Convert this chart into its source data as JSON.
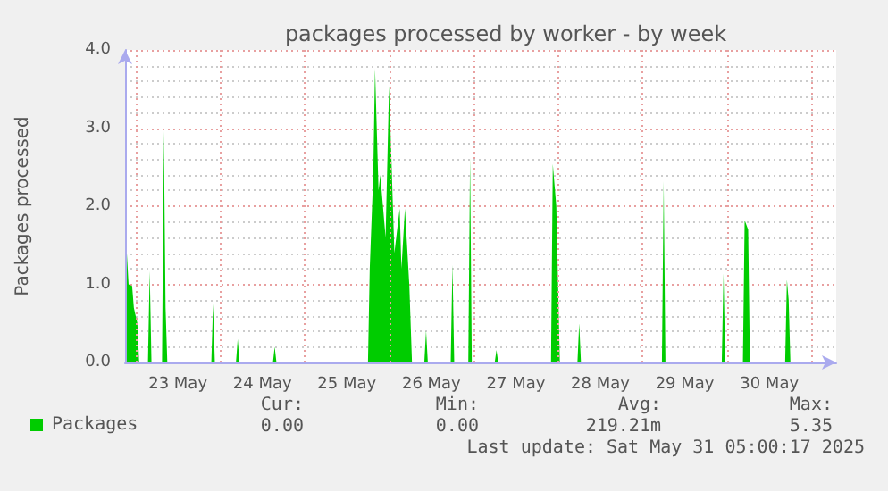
{
  "chart_data": {
    "type": "area",
    "title": "packages processed by worker - by week",
    "ylabel": "Packages processed",
    "series": [
      {
        "name": "Packages",
        "color": "#00cc00",
        "x": [
          "2025-05-22T21:30",
          "2025-05-22T22:00",
          "2025-05-22T23:00",
          "2025-05-22T23:30",
          "2025-05-23T00:30",
          "2025-05-23T01:00",
          "2025-05-23T03:30",
          "2025-05-23T04:00",
          "2025-05-23T04:30",
          "2025-05-23T07:30",
          "2025-05-23T08:00",
          "2025-05-23T08:30",
          "2025-05-23T09:00",
          "2025-05-23T21:30",
          "2025-05-23T22:00",
          "2025-05-23T22:30",
          "2025-05-24T04:30",
          "2025-05-24T05:00",
          "2025-05-24T05:30",
          "2025-05-24T15:00",
          "2025-05-24T15:30",
          "2025-05-24T16:00",
          "2025-05-25T18:00",
          "2025-05-25T18:30",
          "2025-05-25T19:30",
          "2025-05-25T20:00",
          "2025-05-25T21:00",
          "2025-05-25T21:30",
          "2025-05-25T23:00",
          "2025-05-26T00:00",
          "2025-05-26T01:30",
          "2025-05-26T03:00",
          "2025-05-26T03:30",
          "2025-05-26T04:30",
          "2025-05-26T05:45",
          "2025-05-26T06:30",
          "2025-05-26T10:00",
          "2025-05-26T10:30",
          "2025-05-26T11:00",
          "2025-05-26T17:30",
          "2025-05-26T18:00",
          "2025-05-26T18:30",
          "2025-05-26T22:30",
          "2025-05-26T23:00",
          "2025-05-26T23:30",
          "2025-05-27T06:00",
          "2025-05-27T06:30",
          "2025-05-27T07:00",
          "2025-05-27T22:00",
          "2025-05-27T22:30",
          "2025-05-27T23:30",
          "2025-05-28T00:30",
          "2025-05-28T05:30",
          "2025-05-28T06:00",
          "2025-05-28T06:30",
          "2025-05-29T05:30",
          "2025-05-29T06:00",
          "2025-05-29T06:30",
          "2025-05-29T22:30",
          "2025-05-29T23:00",
          "2025-05-29T23:30",
          "2025-05-30T04:30",
          "2025-05-30T05:00",
          "2025-05-30T06:00",
          "2025-05-30T06:30",
          "2025-05-30T16:30",
          "2025-05-30T17:00",
          "2025-05-30T17:30",
          "2025-05-30T18:00",
          "2025-05-31T07:00"
        ],
        "values": [
          1.4,
          1.0,
          0.98,
          0.7,
          0.5,
          0,
          0,
          1.17,
          0,
          0,
          2.96,
          0.7,
          0,
          0,
          0.75,
          0,
          0,
          0.3,
          0,
          0,
          0.2,
          0,
          0,
          1.2,
          2.4,
          3.76,
          2.2,
          2.4,
          1.6,
          3.54,
          1.4,
          1.97,
          1.2,
          1.97,
          0.98,
          0,
          0,
          0.41,
          0,
          0,
          1.25,
          0,
          0,
          2.62,
          0,
          0,
          0.16,
          0,
          0,
          2.54,
          2.0,
          0,
          0,
          0.5,
          0,
          0,
          2.32,
          0,
          0,
          1.14,
          0,
          0,
          1.82,
          1.7,
          0,
          0,
          1.06,
          0.8,
          0,
          0
        ]
      }
    ],
    "xlim": [
      "2025-05-22T21:00",
      "2025-05-31T07:00"
    ],
    "xticks": [
      {
        "value": "2025-05-23T00:00",
        "label": null
      },
      {
        "value": "2025-05-23T12:00",
        "label": "23 May"
      },
      {
        "value": "2025-05-24T00:00",
        "label": null
      },
      {
        "value": "2025-05-24T12:00",
        "label": "24 May"
      },
      {
        "value": "2025-05-25T00:00",
        "label": null
      },
      {
        "value": "2025-05-25T12:00",
        "label": "25 May"
      },
      {
        "value": "2025-05-26T00:00",
        "label": null
      },
      {
        "value": "2025-05-26T12:00",
        "label": "26 May"
      },
      {
        "value": "2025-05-27T00:00",
        "label": null
      },
      {
        "value": "2025-05-27T12:00",
        "label": "27 May"
      },
      {
        "value": "2025-05-28T00:00",
        "label": null
      },
      {
        "value": "2025-05-28T12:00",
        "label": "28 May"
      },
      {
        "value": "2025-05-29T00:00",
        "label": null
      },
      {
        "value": "2025-05-29T12:00",
        "label": "29 May"
      },
      {
        "value": "2025-05-30T00:00",
        "label": null
      },
      {
        "value": "2025-05-30T12:00",
        "label": "30 May"
      },
      {
        "value": "2025-05-31T00:00",
        "label": null
      }
    ],
    "ylim": [
      0,
      4
    ],
    "yticks": [
      {
        "value": 0,
        "label": "0.0"
      },
      {
        "value": 1,
        "label": "1.0"
      },
      {
        "value": 2,
        "label": "2.0"
      },
      {
        "value": 3,
        "label": "3.0"
      },
      {
        "value": 4,
        "label": "4.0"
      }
    ],
    "grid": true,
    "legend": "bottom left",
    "annotations": [
      "Cur:",
      "Min:",
      "Avg:",
      "Max:",
      "0.00",
      "0.00",
      "219.21m",
      "5.35",
      "Last update: Sat May 31 05:00:17 2025"
    ]
  }
}
